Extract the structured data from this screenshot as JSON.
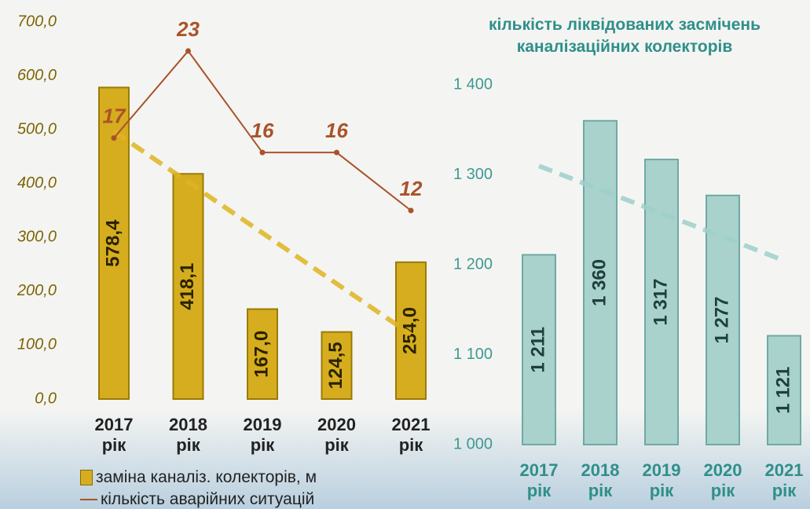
{
  "chart_data": [
    {
      "type": "bar",
      "categories": [
        "2017 рік",
        "2018 рік",
        "2019 рік",
        "2020 рік",
        "2021 рік"
      ],
      "series": [
        {
          "name": "заміна каналіз. колекторів, м",
          "color": "#d6ad1e",
          "values": [
            578.4,
            418.1,
            167.0,
            124.5,
            254.0
          ],
          "value_labels": [
            "578,4",
            "418,1",
            "167,0",
            "124,5",
            "254,0"
          ]
        },
        {
          "name": "кількість аварійних ситуацій",
          "type": "line",
          "axis": "y2",
          "color": "#a9532b",
          "values": [
            17,
            23,
            16,
            16,
            12
          ]
        }
      ],
      "ylim": [
        0,
        700
      ],
      "yticks": [
        {
          "value": 0,
          "label": "0,0"
        },
        {
          "value": 100,
          "label": "100,0"
        },
        {
          "value": 200,
          "label": "200,0"
        },
        {
          "value": 300,
          "label": "300,0"
        },
        {
          "value": 400,
          "label": "400,0"
        },
        {
          "value": 500,
          "label": "500,0"
        },
        {
          "value": 600,
          "label": "600,0"
        },
        {
          "value": 700,
          "label": "700,0"
        }
      ],
      "y2lim": [
        -1,
        25
      ],
      "trendline": true,
      "trend_color": "#e0b422"
    },
    {
      "type": "bar",
      "title": "кількість ліквідованих засмічень каналізаційних колекторів",
      "categories": [
        "2017 рік",
        "2018 рік",
        "2019 рік",
        "2020 рік",
        "2021 рік"
      ],
      "values": [
        1211,
        1360,
        1317,
        1277,
        1121
      ],
      "value_labels": [
        "1 211",
        "1 360",
        "1 317",
        "1 277",
        "1 121"
      ],
      "color": "#a9d2cd",
      "ylim": [
        1000,
        1400
      ],
      "yticks": [
        {
          "value": 1000,
          "label": "1 000"
        },
        {
          "value": 1100,
          "label": "1 100"
        },
        {
          "value": 1200,
          "label": "1 200"
        },
        {
          "value": 1300,
          "label": "1 300"
        },
        {
          "value": 1400,
          "label": "1 400"
        }
      ],
      "trendline": true,
      "trend_color": "#9fd0cb"
    }
  ]
}
